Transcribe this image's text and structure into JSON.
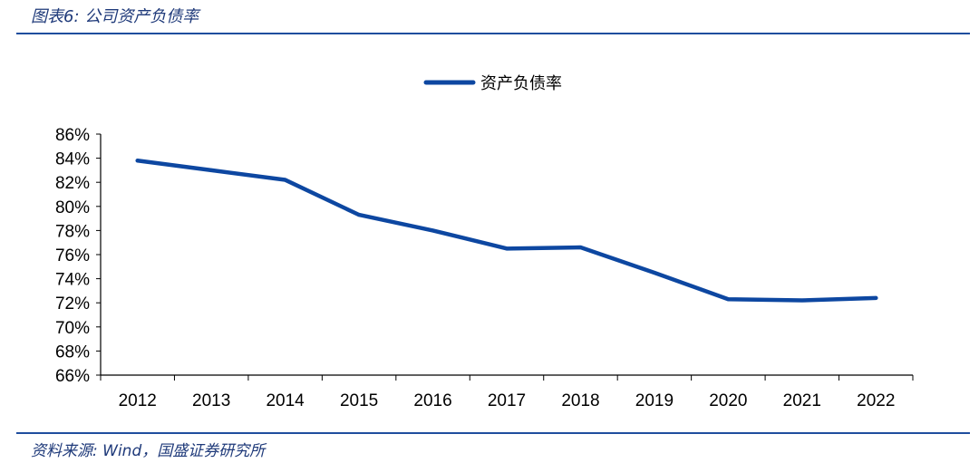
{
  "caption": "图表6: 公司资产负债率",
  "source": "资料来源: Wind，国盛证券研究所",
  "chart_data": {
    "type": "line",
    "title": "",
    "xlabel": "",
    "ylabel": "",
    "categories": [
      "2012",
      "2013",
      "2014",
      "2015",
      "2016",
      "2017",
      "2018",
      "2019",
      "2020",
      "2021",
      "2022"
    ],
    "series": [
      {
        "name": "资产负债率",
        "color": "#0d47a1",
        "values": [
          83.8,
          83.0,
          82.2,
          79.3,
          78.0,
          76.5,
          76.6,
          74.5,
          72.3,
          72.2,
          72.4
        ]
      }
    ],
    "ylim": [
      66,
      86
    ],
    "yticks": [
      "66%",
      "68%",
      "70%",
      "72%",
      "74%",
      "76%",
      "78%",
      "80%",
      "82%",
      "84%",
      "86%"
    ],
    "grid": false,
    "legend_position": "top-center"
  }
}
